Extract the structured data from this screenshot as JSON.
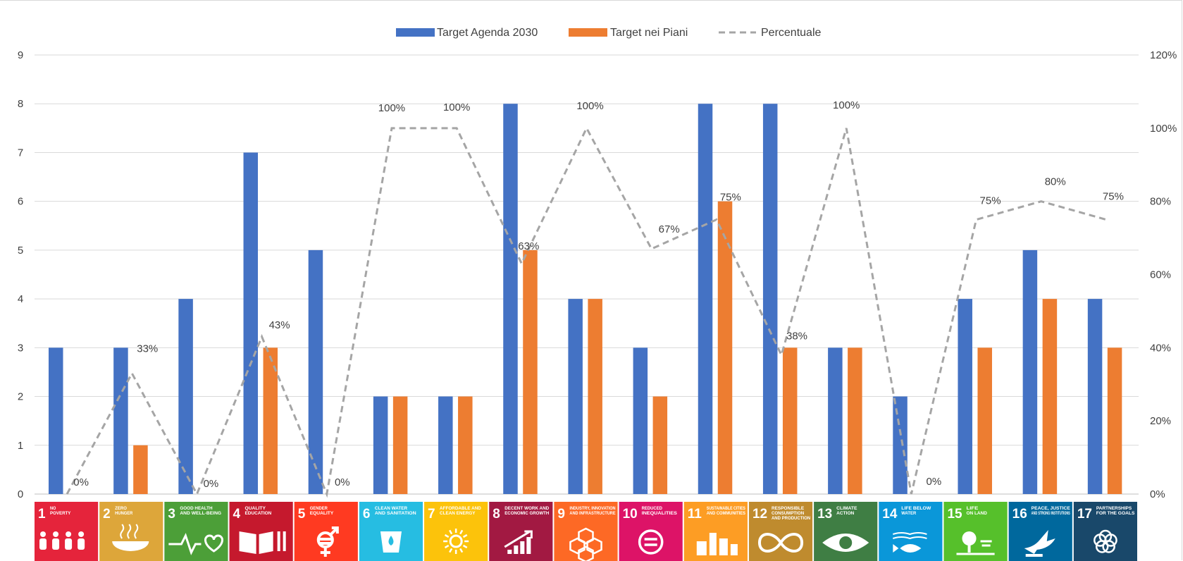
{
  "chart_data": {
    "type": "bar",
    "title": "",
    "categories": [
      "1",
      "2",
      "3",
      "4",
      "5",
      "6",
      "7",
      "8",
      "9",
      "10",
      "11",
      "12",
      "13",
      "14",
      "15",
      "16",
      "17"
    ],
    "series": [
      {
        "name": "Target Agenda 2030",
        "kind": "bar",
        "axis": "left",
        "color": "#4472c4",
        "values": [
          3,
          3,
          4,
          7,
          5,
          2,
          2,
          8,
          4,
          3,
          8,
          8,
          3,
          2,
          4,
          5,
          4
        ]
      },
      {
        "name": "Target nei Piani",
        "kind": "bar",
        "axis": "left",
        "color": "#ed7d31",
        "values": [
          0,
          1,
          0,
          3,
          0,
          2,
          2,
          5,
          4,
          2,
          6,
          3,
          3,
          0,
          3,
          4,
          3
        ]
      },
      {
        "name": "Percentuale",
        "kind": "line",
        "style": "dashed",
        "axis": "right",
        "color": "#a5a5a5",
        "values": [
          0,
          33,
          0,
          43,
          0,
          100,
          100,
          63,
          100,
          67,
          75,
          38,
          100,
          0,
          75,
          80,
          75
        ]
      }
    ],
    "data_labels": [
      "0%",
      "33%",
      "0%",
      "43%",
      "0%",
      "100%",
      "100%",
      "63%",
      "100%",
      "67%",
      "75%",
      "38%",
      "100%",
      "0%",
      "75%",
      "80%",
      "75%"
    ],
    "y_left": {
      "min": 0,
      "max": 9,
      "ticks": [
        "0",
        "1",
        "2",
        "3",
        "4",
        "5",
        "6",
        "7",
        "8",
        "9"
      ]
    },
    "y_right": {
      "min": 0,
      "max": 120,
      "ticks": [
        "0%",
        "20%",
        "40%",
        "60%",
        "80%",
        "100%",
        "120%"
      ]
    },
    "grid": true,
    "legend_position": "top",
    "sdg_tiles": [
      {
        "num": "1",
        "text": [
          "NO",
          "POVERTY"
        ],
        "color": "#e5243b",
        "icon": "family-icon"
      },
      {
        "num": "2",
        "text": [
          "ZERO",
          "HUNGER"
        ],
        "color": "#dda63a",
        "icon": "bowl-icon"
      },
      {
        "num": "3",
        "text": [
          "GOOD HEALTH",
          "AND WELL-BEING"
        ],
        "color": "#4c9f38",
        "icon": "heartbeat-icon"
      },
      {
        "num": "4",
        "text": [
          "QUALITY",
          "EDUCATION"
        ],
        "color": "#c5192d",
        "icon": "book-icon"
      },
      {
        "num": "5",
        "text": [
          "GENDER",
          "EQUALITY"
        ],
        "color": "#ff3a21",
        "icon": "gender-icon"
      },
      {
        "num": "6",
        "text": [
          "CLEAN WATER",
          "AND SANITATION"
        ],
        "color": "#26bde2",
        "icon": "water-drop-icon"
      },
      {
        "num": "7",
        "text": [
          "AFFORDABLE AND",
          "CLEAN ENERGY"
        ],
        "color": "#fcc30b",
        "icon": "sun-icon"
      },
      {
        "num": "8",
        "text": [
          "DECENT WORK AND",
          "ECONOMIC GROWTH"
        ],
        "color": "#a21942",
        "icon": "growth-chart-icon"
      },
      {
        "num": "9",
        "text": [
          "INDUSTRY, INNOVATION",
          "AND INFRASTRUCTURE"
        ],
        "color": "#fd6925",
        "icon": "cubes-icon"
      },
      {
        "num": "10",
        "text": [
          "REDUCED",
          "INEQUALITIES"
        ],
        "color": "#dd1367",
        "icon": "equals-circle-icon"
      },
      {
        "num": "11",
        "text": [
          "SUSTAINABLE CITIES",
          "AND COMMUNITIES"
        ],
        "color": "#fd9d24",
        "icon": "city-icon"
      },
      {
        "num": "12",
        "text": [
          "RESPONSIBLE",
          "CONSUMPTION",
          "AND PRODUCTION"
        ],
        "color": "#bf8b2e",
        "icon": "infinity-icon"
      },
      {
        "num": "13",
        "text": [
          "CLIMATE",
          "ACTION"
        ],
        "color": "#3f7e44",
        "icon": "eye-globe-icon"
      },
      {
        "num": "14",
        "text": [
          "LIFE BELOW",
          "WATER"
        ],
        "color": "#0a97d9",
        "icon": "fish-icon"
      },
      {
        "num": "15",
        "text": [
          "LIFE",
          "ON LAND"
        ],
        "color": "#56c02b",
        "icon": "tree-icon"
      },
      {
        "num": "16",
        "text": [
          "PEACE, JUSTICE",
          "AND STRONG INSTITUTIONS"
        ],
        "color": "#00689d",
        "icon": "dove-icon"
      },
      {
        "num": "17",
        "text": [
          "PARTNERSHIPS",
          "FOR THE GOALS"
        ],
        "color": "#19486a",
        "icon": "flower-rings-icon"
      }
    ]
  }
}
